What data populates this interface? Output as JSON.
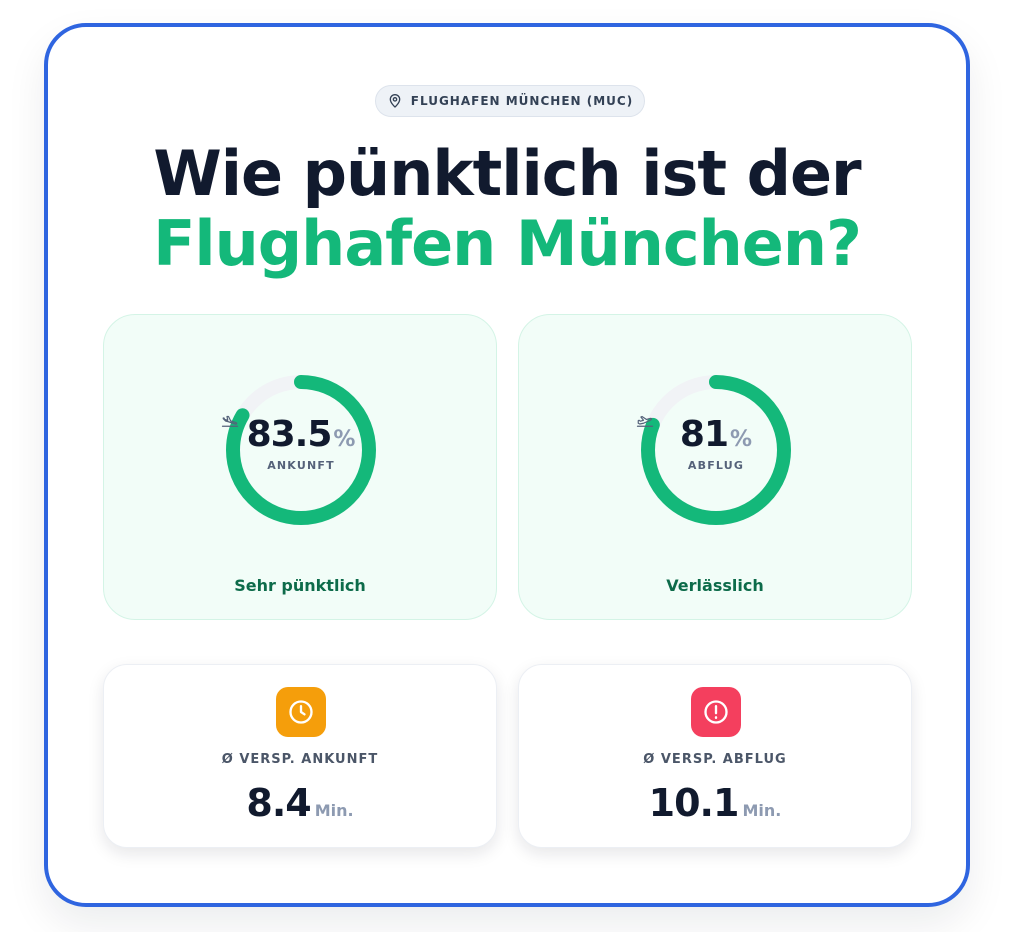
{
  "location": {
    "icon": "map-pin-icon",
    "label": "FLUGHAFEN MÜNCHEN (MUC)"
  },
  "headline": {
    "line1": "Wie pünktlich ist der",
    "line2": "Flughafen München?",
    "accent_color": "#14b87a"
  },
  "punctuality": [
    {
      "value": "83.5",
      "value_fraction": 0.835,
      "unit": "%",
      "label": "ANKUNFT",
      "icon": "plane-landing-icon",
      "verdict": "Sehr pünktlich"
    },
    {
      "value": "81",
      "value_fraction": 0.81,
      "unit": "%",
      "label": "ABFLUG",
      "icon": "plane-takeoff-icon",
      "verdict": "Verlässlich"
    }
  ],
  "delays": [
    {
      "label": "Ø VERSP. ANKUNFT",
      "value": "8.4",
      "unit": "Min.",
      "icon": "clock-icon",
      "color": "#f59e0b"
    },
    {
      "label": "Ø VERSP. ABFLUG",
      "value": "10.1",
      "unit": "Min.",
      "icon": "alert-circle-icon",
      "color": "#f43f5e"
    }
  ],
  "colors": {
    "frame": "#2f65e0",
    "ring": "#14b87a",
    "ring_track": "#f1f3f6"
  }
}
